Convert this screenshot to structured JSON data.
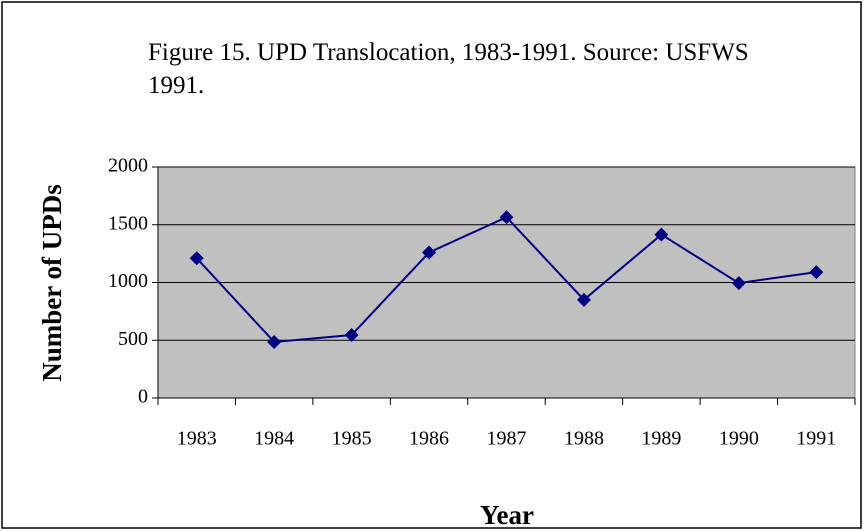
{
  "chart_data": {
    "type": "line",
    "title": "Figure 15. UPD Translocation, 1983-1991. Source: USFWS 1991.",
    "xlabel": "Year",
    "ylabel": "Number of UPDs",
    "categories": [
      "1983",
      "1984",
      "1985",
      "1986",
      "1987",
      "1988",
      "1989",
      "1990",
      "1991"
    ],
    "series": [
      {
        "name": "UPDs",
        "color": "#000080",
        "values": [
          1210,
          485,
          545,
          1260,
          1565,
          850,
          1415,
          995,
          1090
        ]
      }
    ],
    "ylim": [
      0,
      2000
    ],
    "yticks": [
      0,
      500,
      1000,
      1500,
      2000
    ],
    "grid": true,
    "plot_background": "#c0c0c0"
  }
}
